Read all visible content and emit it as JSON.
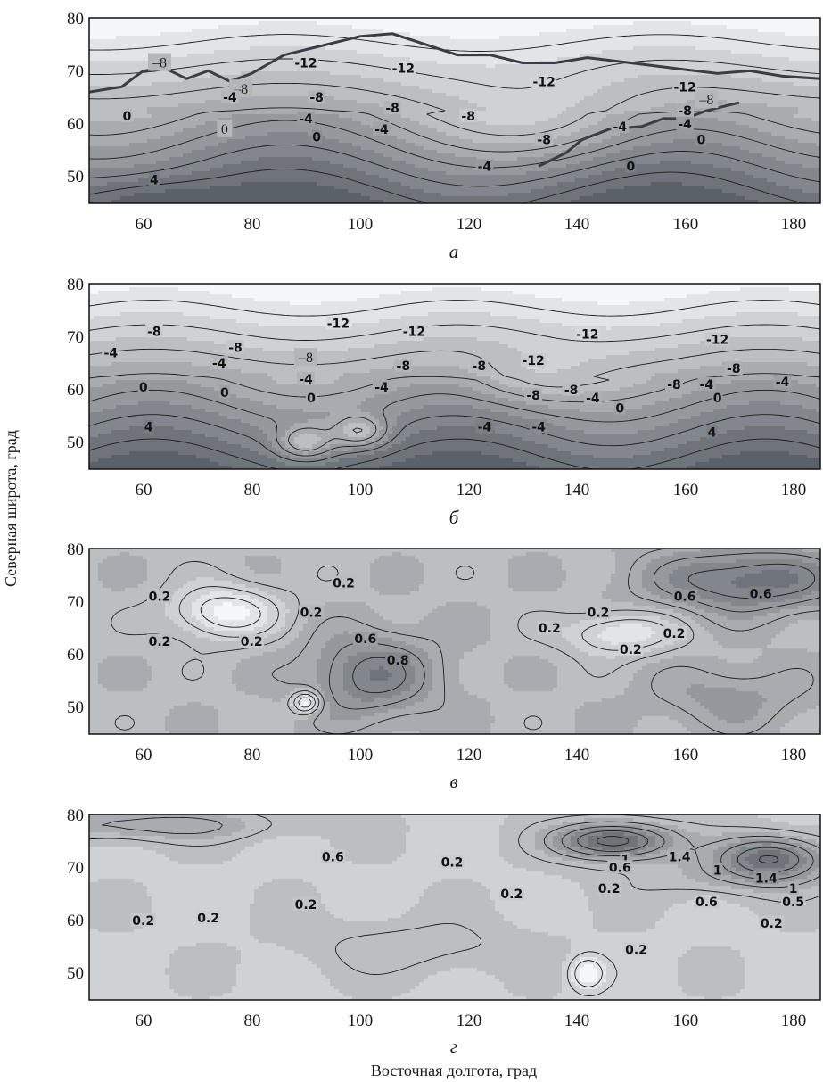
{
  "chart_data": [
    {
      "type": "contour",
      "panel_label": "а",
      "xlim": [
        50,
        185
      ],
      "ylim": [
        45,
        80
      ],
      "xticks": [
        "60",
        "80",
        "100",
        "120",
        "140",
        "160",
        "180"
      ],
      "yticks": [
        "80",
        "70",
        "60",
        "50"
      ],
      "coastline": true,
      "contour_labels": [
        {
          "text": "–8",
          "x": 63,
          "y": 71.5,
          "boxed": true
        },
        {
          "text": "–8",
          "x": 78,
          "y": 66.5,
          "boxed": true
        },
        {
          "text": "-12",
          "x": 90,
          "y": 71.5
        },
        {
          "text": "-12",
          "x": 108,
          "y": 70.5
        },
        {
          "text": "-12",
          "x": 134,
          "y": 68
        },
        {
          "text": "-12",
          "x": 160,
          "y": 67
        },
        {
          "text": "-4",
          "x": 76,
          "y": 65
        },
        {
          "text": "-8",
          "x": 92,
          "y": 65
        },
        {
          "text": "-8",
          "x": 106,
          "y": 63
        },
        {
          "text": "-8",
          "x": 120,
          "y": 61.5
        },
        {
          "text": "-8",
          "x": 160,
          "y": 62.5
        },
        {
          "text": "–8",
          "x": 164,
          "y": 64.5,
          "boxed": true
        },
        {
          "text": "-4",
          "x": 90,
          "y": 61
        },
        {
          "text": "-4",
          "x": 104,
          "y": 59
        },
        {
          "text": "-4",
          "x": 148,
          "y": 59.5
        },
        {
          "text": "-4",
          "x": 160,
          "y": 60
        },
        {
          "text": "-4",
          "x": 123,
          "y": 52
        },
        {
          "text": "-8",
          "x": 134,
          "y": 57
        },
        {
          "text": "0",
          "x": 57,
          "y": 61.5
        },
        {
          "text": "0",
          "x": 75,
          "y": 59,
          "boxed": true
        },
        {
          "text": "0",
          "x": 92,
          "y": 57.5
        },
        {
          "text": "0",
          "x": 150,
          "y": 52
        },
        {
          "text": "0",
          "x": 163,
          "y": 57
        },
        {
          "text": "4",
          "x": 62,
          "y": 49.5
        }
      ]
    },
    {
      "type": "contour",
      "panel_label": "б",
      "xlim": [
        50,
        185
      ],
      "ylim": [
        45,
        80
      ],
      "xticks": [
        "60",
        "80",
        "100",
        "120",
        "140",
        "160",
        "180"
      ],
      "yticks": [
        "80",
        "70",
        "60",
        "50"
      ],
      "contour_labels": [
        {
          "text": "-8",
          "x": 62,
          "y": 71
        },
        {
          "text": "-8",
          "x": 77,
          "y": 68
        },
        {
          "text": "-4",
          "x": 54,
          "y": 67
        },
        {
          "text": "-4",
          "x": 74,
          "y": 65
        },
        {
          "text": "-12",
          "x": 96,
          "y": 72.5
        },
        {
          "text": "-12",
          "x": 110,
          "y": 71
        },
        {
          "text": "-12",
          "x": 142,
          "y": 70.5
        },
        {
          "text": "-12",
          "x": 166,
          "y": 69.5
        },
        {
          "text": "–8",
          "x": 90,
          "y": 66,
          "boxed": true
        },
        {
          "text": "-8",
          "x": 108,
          "y": 64.5
        },
        {
          "text": "-8",
          "x": 122,
          "y": 64.5
        },
        {
          "text": "-12",
          "x": 132,
          "y": 65.5
        },
        {
          "text": "-8",
          "x": 169,
          "y": 64
        },
        {
          "text": "-4",
          "x": 90,
          "y": 62
        },
        {
          "text": "-4",
          "x": 104,
          "y": 60.5
        },
        {
          "text": "-8",
          "x": 132,
          "y": 59
        },
        {
          "text": "-8",
          "x": 139,
          "y": 60
        },
        {
          "text": "-8",
          "x": 158,
          "y": 61
        },
        {
          "text": "-4",
          "x": 164,
          "y": 61
        },
        {
          "text": "-4",
          "x": 178,
          "y": 61.5
        },
        {
          "text": "-4",
          "x": 143,
          "y": 58.5
        },
        {
          "text": "0",
          "x": 60,
          "y": 60.5
        },
        {
          "text": "0",
          "x": 75,
          "y": 59.5
        },
        {
          "text": "0",
          "x": 91,
          "y": 58.5
        },
        {
          "text": "0",
          "x": 148,
          "y": 56.5
        },
        {
          "text": "0",
          "x": 166,
          "y": 58.5
        },
        {
          "text": "-4",
          "x": 123,
          "y": 53
        },
        {
          "text": "-4",
          "x": 133,
          "y": 53
        },
        {
          "text": "4",
          "x": 61,
          "y": 53
        },
        {
          "text": "4",
          "x": 165,
          "y": 52
        }
      ]
    },
    {
      "type": "contour",
      "panel_label": "в",
      "xlim": [
        50,
        185
      ],
      "ylim": [
        45,
        80
      ],
      "xticks": [
        "60",
        "80",
        "100",
        "120",
        "140",
        "160",
        "180"
      ],
      "yticks": [
        "80",
        "70",
        "60",
        "50"
      ],
      "contour_labels": [
        {
          "text": "0.2",
          "x": 63,
          "y": 71
        },
        {
          "text": "0.2",
          "x": 97,
          "y": 73.5
        },
        {
          "text": "0.2",
          "x": 91,
          "y": 68
        },
        {
          "text": "0.2",
          "x": 63,
          "y": 62.5
        },
        {
          "text": "0.2",
          "x": 80,
          "y": 62.5
        },
        {
          "text": "0.6",
          "x": 101,
          "y": 63
        },
        {
          "text": "0.8",
          "x": 107,
          "y": 59
        },
        {
          "text": "0.6",
          "x": 160,
          "y": 71
        },
        {
          "text": "0.6",
          "x": 174,
          "y": 71.5
        },
        {
          "text": "0.2",
          "x": 144,
          "y": 68
        },
        {
          "text": "0.2",
          "x": 135,
          "y": 65
        },
        {
          "text": "0.2",
          "x": 158,
          "y": 64
        },
        {
          "text": "0.2",
          "x": 150,
          "y": 61
        }
      ]
    },
    {
      "type": "contour",
      "panel_label": "г",
      "xlim": [
        50,
        185
      ],
      "ylim": [
        45,
        80
      ],
      "xticks": [
        "60",
        "80",
        "100",
        "120",
        "140",
        "160",
        "180"
      ],
      "yticks": [
        "80",
        "70",
        "60",
        "50"
      ],
      "contour_labels": [
        {
          "text": "0.6",
          "x": 95,
          "y": 72
        },
        {
          "text": "0.2",
          "x": 117,
          "y": 71
        },
        {
          "text": "1",
          "x": 149,
          "y": 71.5
        },
        {
          "text": "0.6",
          "x": 148,
          "y": 70
        },
        {
          "text": "1.4",
          "x": 159,
          "y": 72
        },
        {
          "text": "1",
          "x": 166,
          "y": 69.5
        },
        {
          "text": "1.4",
          "x": 175,
          "y": 68
        },
        {
          "text": "1",
          "x": 180,
          "y": 66
        },
        {
          "text": "0.2",
          "x": 146,
          "y": 66
        },
        {
          "text": "0.6",
          "x": 164,
          "y": 63.5
        },
        {
          "text": "0.5",
          "x": 180,
          "y": 63.5
        },
        {
          "text": "0.2",
          "x": 128,
          "y": 65
        },
        {
          "text": "0.2",
          "x": 90,
          "y": 63
        },
        {
          "text": "0.2",
          "x": 60,
          "y": 60
        },
        {
          "text": "0.2",
          "x": 72,
          "y": 60.5
        },
        {
          "text": "0.2",
          "x": 176,
          "y": 59.5
        },
        {
          "text": "0.2",
          "x": 151,
          "y": 54.5
        }
      ]
    }
  ],
  "axes": {
    "xlabel": "Восточная долгота, град",
    "ylabel": "Северная широта, град"
  },
  "colors": {
    "fill_light": "#f6f7f8",
    "fill_dark": "#5a6168",
    "contour": "#1e1e1e",
    "coastline": "#3a3d42"
  }
}
